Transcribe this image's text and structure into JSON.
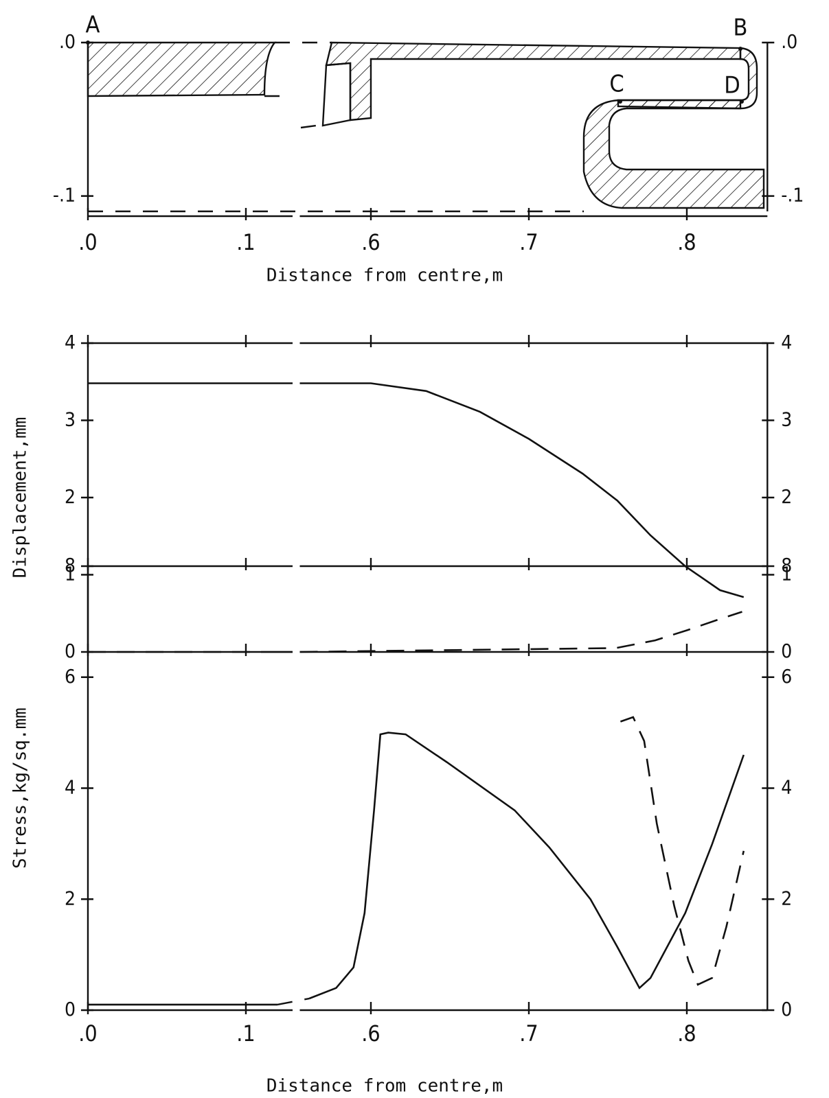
{
  "chart_data": [
    {
      "type": "section",
      "xlabel": "Distance from centre,m",
      "point_labels": [
        "A",
        "B",
        "C",
        "D"
      ],
      "xlim": [
        0,
        0.851
      ],
      "xbreak": [
        0.12,
        0.555
      ],
      "xticks": [
        {
          "value": 0,
          "label": ".0"
        },
        {
          "value": 0.1,
          "label": ".1"
        },
        {
          "value": 0.6,
          "label": ".6"
        },
        {
          "value": 0.7,
          "label": ".7"
        },
        {
          "value": 0.8,
          "label": ".8"
        }
      ],
      "ylim": [
        -0.11,
        0
      ],
      "yticks": [
        {
          "value": 0,
          "label": ".0"
        },
        {
          "value": -0.1,
          "label": "-.1"
        }
      ]
    },
    {
      "type": "line",
      "ylabel": "Displacement,mm",
      "xlim": [
        0,
        0.851
      ],
      "xbreak": [
        0.12,
        0.555
      ],
      "xticks": [
        {
          "value": 0,
          "label": ".0"
        },
        {
          "value": 0.1,
          "label": ".1"
        },
        {
          "value": 0.6,
          "label": ".6"
        },
        {
          "value": 0.7,
          "label": ".7"
        },
        {
          "value": 0.8,
          "label": ".8"
        }
      ],
      "ylim": [
        0,
        4
      ],
      "yticks": [
        0,
        1,
        2,
        3,
        4
      ],
      "series": [
        {
          "color": "#111",
          "dash": false,
          "x": [
            0,
            0.12,
            0.555,
            0.6,
            0.635,
            0.669,
            0.7,
            0.734,
            0.756,
            0.777,
            0.799,
            0.821,
            0.836
          ],
          "values": [
            3.48,
            3.48,
            3.48,
            3.48,
            3.38,
            3.11,
            2.76,
            2.31,
            1.96,
            1.51,
            1.11,
            0.8,
            0.71
          ]
        },
        {
          "color": "#111",
          "dash": true,
          "x": [
            0,
            0.12,
            0.555,
            0.755,
            0.78,
            0.8,
            0.82,
            0.835
          ],
          "values": [
            0,
            0,
            0,
            0.05,
            0.15,
            0.28,
            0.42,
            0.52
          ]
        }
      ]
    },
    {
      "type": "line",
      "ylabel": "Stress,kg/sq.mm",
      "xlabel": "Distance from centre,m",
      "xlim": [
        0,
        0.851
      ],
      "xbreak": [
        0.12,
        0.555
      ],
      "xticks": [
        {
          "value": 0,
          "label": ".0"
        },
        {
          "value": 0.1,
          "label": ".1"
        },
        {
          "value": 0.6,
          "label": ".6"
        },
        {
          "value": 0.7,
          "label": ".7"
        },
        {
          "value": 0.8,
          "label": ".8"
        }
      ],
      "ylim": [
        0,
        8
      ],
      "yticks": [
        0,
        2,
        4,
        6,
        8
      ],
      "series": [
        {
          "color": "#111",
          "dash": false,
          "x": [
            0,
            0.12,
            0.561,
            0.578,
            0.589,
            0.596,
            0.602,
            0.606,
            0.611,
            0.622,
            0.648,
            0.691,
            0.713,
            0.739,
            0.756,
            0.77,
            0.777,
            0.799,
            0.816,
            0.836
          ],
          "values": [
            0.1,
            0.1,
            0.21,
            0.4,
            0.77,
            1.75,
            3.6,
            4.97,
            5.0,
            4.97,
            4.47,
            3.6,
            2.93,
            2.0,
            1.14,
            0.4,
            0.58,
            1.75,
            2.99,
            4.6
          ]
        },
        {
          "color": "#111",
          "dash": true,
          "x": [
            0.758,
            0.766,
            0.773,
            0.781,
            0.792,
            0.801,
            0.807,
            0.816,
            0.825,
            0.836
          ],
          "values": [
            5.2,
            5.28,
            4.85,
            3.36,
            1.88,
            0.89,
            0.46,
            0.58,
            1.5,
            2.87
          ]
        }
      ]
    }
  ]
}
